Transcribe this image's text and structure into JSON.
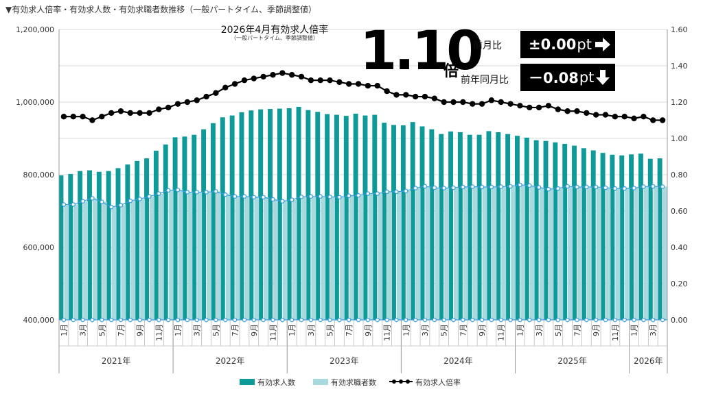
{
  "header": {
    "title": "▼有効求人倍率・有効求人数・有効求職者数推移（一般パートタイム、季節調整値）"
  },
  "highlight": {
    "title": "2026年4月有効求人倍率",
    "note": "（一般パートタイム、季節調整値）",
    "ratio": "1.10",
    "unit": "倍",
    "mom_label": "前月比",
    "mom_value": "±0.00",
    "mom_unit": "pt",
    "mom_arrow": "right-arrow-icon",
    "yoy_label": "前年同月比",
    "yoy_value": "－0.08",
    "yoy_unit": "pt",
    "yoy_arrow": "down-arrow-icon"
  },
  "colors": {
    "openings": "#0f9a9a",
    "seekers": "#a7d9de",
    "ratio": "#000000",
    "marker_fill": "#3aa0e0",
    "grid": "#d8d8d8"
  },
  "chart_data": {
    "type": "bar+line",
    "x_month_ticks": [
      "1月",
      "3月",
      "5月",
      "7月",
      "9月",
      "11月"
    ],
    "years": [
      "2021年",
      "2022年",
      "2023年",
      "2024年",
      "2025年",
      "2026年"
    ],
    "y_left_ticks": [
      "400,000",
      "600,000",
      "800,000",
      "1,000,000",
      "1,200,000"
    ],
    "y_right_ticks": [
      "0.00",
      "0.20",
      "0.40",
      "0.60",
      "0.80",
      "1.00",
      "1.20",
      "1.40",
      "1.60"
    ],
    "y_left_range": [
      400000,
      1200000
    ],
    "y_right_range": [
      0,
      1.6
    ],
    "start": "2021-01",
    "end": "2026-04",
    "series": [
      {
        "name": "有効求人数",
        "kind": "bar",
        "values": [
          798000,
          802000,
          810000,
          812000,
          808000,
          810000,
          818000,
          828000,
          838000,
          845000,
          866000,
          883000,
          903000,
          905000,
          910000,
          925000,
          942000,
          958000,
          963000,
          972000,
          977000,
          980000,
          981000,
          982000,
          983000,
          987000,
          978000,
          973000,
          967000,
          965000,
          962000,
          968000,
          963000,
          965000,
          943000,
          937000,
          936000,
          945000,
          933000,
          925000,
          912000,
          919000,
          917000,
          910000,
          910000,
          920000,
          917000,
          912000,
          907000,
          902000,
          895000,
          893000,
          889000,
          885000,
          880000,
          873000,
          867000,
          860000,
          855000,
          853000,
          856000,
          858000,
          844000,
          845000
        ]
      },
      {
        "name": "有効求職者数",
        "kind": "bar",
        "values": [
          718000,
          718000,
          727000,
          735000,
          725000,
          711000,
          716000,
          728000,
          733000,
          740000,
          748000,
          757000,
          758000,
          752000,
          752000,
          752000,
          754000,
          745000,
          740000,
          740000,
          738000,
          738000,
          732000,
          727000,
          731000,
          739000,
          740000,
          740000,
          739000,
          738000,
          742000,
          743000,
          748000,
          748000,
          753000,
          753000,
          755000,
          763000,
          768000,
          764000,
          763000,
          764000,
          766000,
          767000,
          766000,
          766000,
          767000,
          768000,
          772000,
          770000,
          765000,
          760000,
          762000,
          768000,
          766000,
          766000,
          766000,
          764000,
          762000,
          762000,
          763000,
          767000,
          768000,
          767000
        ]
      },
      {
        "name": "有効求人倍率",
        "kind": "line",
        "values": [
          1.12,
          1.12,
          1.12,
          1.1,
          1.12,
          1.14,
          1.15,
          1.14,
          1.14,
          1.14,
          1.16,
          1.17,
          1.19,
          1.2,
          1.21,
          1.23,
          1.25,
          1.28,
          1.3,
          1.32,
          1.33,
          1.34,
          1.35,
          1.36,
          1.35,
          1.34,
          1.32,
          1.32,
          1.32,
          1.31,
          1.3,
          1.3,
          1.29,
          1.29,
          1.26,
          1.24,
          1.24,
          1.23,
          1.23,
          1.22,
          1.2,
          1.2,
          1.2,
          1.19,
          1.19,
          1.21,
          1.2,
          1.19,
          1.18,
          1.17,
          1.17,
          1.18,
          1.16,
          1.15,
          1.15,
          1.14,
          1.13,
          1.13,
          1.12,
          1.12,
          1.11,
          1.12,
          1.1,
          1.1
        ]
      }
    ],
    "legend": "bottom-center",
    "grid": "horizontal"
  }
}
